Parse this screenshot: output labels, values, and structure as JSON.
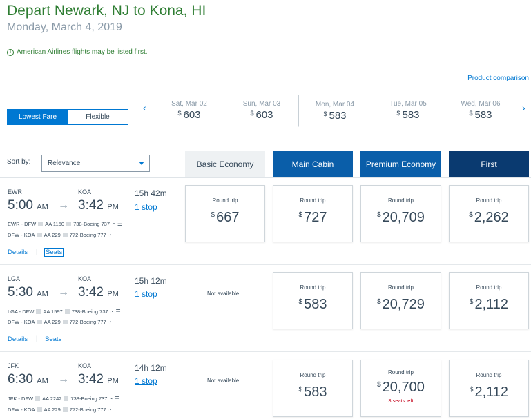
{
  "header": {
    "title": "Depart Newark, NJ to Kona, HI",
    "date": "Monday, March 4, 2019",
    "notice": "American Airlines flights may be listed first.",
    "product_comparison": "Product comparison"
  },
  "fare_toggle": {
    "lowest": "Lowest Fare",
    "flexible": "Flexible"
  },
  "carousel": {
    "days": [
      {
        "label": "Sat, Mar 02",
        "currency": "$",
        "price": "603"
      },
      {
        "label": "Sun, Mar 03",
        "currency": "$",
        "price": "603"
      },
      {
        "label": "Mon, Mar 04",
        "currency": "$",
        "price": "583"
      },
      {
        "label": "Tue, Mar 05",
        "currency": "$",
        "price": "583"
      },
      {
        "label": "Wed, Mar 06",
        "currency": "$",
        "price": "583"
      }
    ]
  },
  "sort": {
    "label": "Sort by:",
    "value": "Relevance"
  },
  "cabins": [
    "Basic Economy",
    "Main Cabin",
    "Premium Economy",
    "First"
  ],
  "flights": [
    {
      "from": "EWR",
      "to": "KOA",
      "depart": "5:00",
      "depart_ampm": "AM",
      "arrive": "3:42",
      "arrive_ampm": "PM",
      "duration": "15h  42m",
      "stops": "1 stop",
      "seg1": {
        "route": "EWR - DFW",
        "flight": "AA 1150",
        "aircraft": "738-Boeing 737"
      },
      "seg2": {
        "route": "DFW - KOA",
        "flight": "AA 229",
        "aircraft": "772-Boeing 777"
      },
      "details": "Details",
      "seats": "Seats",
      "fares": {
        "basic": {
          "label": "Round trip",
          "currency": "$",
          "price": "667"
        },
        "main": {
          "label": "Round trip",
          "currency": "$",
          "price": "727"
        },
        "premium": {
          "label": "Round trip",
          "currency": "$",
          "price": "20,709"
        },
        "first": {
          "label": "Round trip",
          "currency": "$",
          "price": "2,262"
        }
      }
    },
    {
      "from": "LGA",
      "to": "KOA",
      "depart": "5:30",
      "depart_ampm": "AM",
      "arrive": "3:42",
      "arrive_ampm": "PM",
      "duration": "15h  12m",
      "stops": "1 stop",
      "seg1": {
        "route": "LGA - DFW",
        "flight": "AA 1597",
        "aircraft": "738-Boeing 737"
      },
      "seg2": {
        "route": "DFW - KOA",
        "flight": "AA 229",
        "aircraft": "772-Boeing 777"
      },
      "details": "Details",
      "seats": "Seats",
      "basic_na": "Not available",
      "fares": {
        "main": {
          "label": "Round trip",
          "currency": "$",
          "price": "583"
        },
        "premium": {
          "label": "Round trip",
          "currency": "$",
          "price": "20,729"
        },
        "first": {
          "label": "Round trip",
          "currency": "$",
          "price": "2,112"
        }
      }
    },
    {
      "from": "JFK",
      "to": "KOA",
      "depart": "6:30",
      "depart_ampm": "AM",
      "arrive": "3:42",
      "arrive_ampm": "PM",
      "duration": "14h  12m",
      "stops": "1 stop",
      "seg1": {
        "route": "JFK - DFW",
        "flight": "AA 2242",
        "aircraft": "738-Boeing 737"
      },
      "seg2": {
        "route": "DFW - KOA",
        "flight": "AA 229",
        "aircraft": "772-Boeing 777"
      },
      "basic_na": "Not available",
      "fares": {
        "main": {
          "label": "Round trip",
          "currency": "$",
          "price": "583"
        },
        "premium": {
          "label": "Round trip",
          "currency": "$",
          "price": "20,700",
          "note": "3 seats left"
        },
        "first": {
          "label": "Round trip",
          "currency": "$",
          "price": "2,112"
        }
      }
    }
  ],
  "colors": {
    "accent": "#0078d2",
    "cabin_blue": "#0a5ea9",
    "first_navy": "#0a3a70",
    "title_green": "#2e7d32",
    "alert_red": "#c30019"
  }
}
